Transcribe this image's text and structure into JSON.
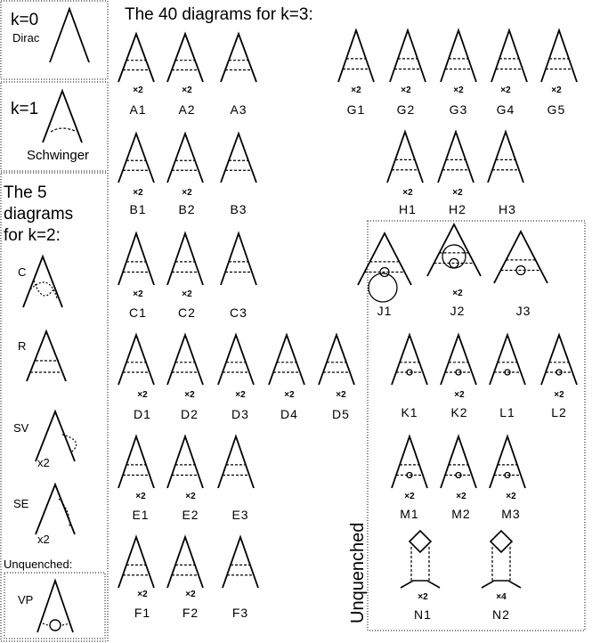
{
  "sidebar": {
    "k0": {
      "title": "k=0",
      "name": "Dirac"
    },
    "k1": {
      "title": "k=1",
      "name": "Schwinger"
    },
    "k2": {
      "heading_lines": [
        "The 5",
        "diagrams",
        "for k=2:"
      ],
      "items": [
        {
          "label": "C",
          "mult": ""
        },
        {
          "label": "R",
          "mult": ""
        },
        {
          "label": "SV",
          "mult": "x2"
        },
        {
          "label": "SE",
          "mult": "x2"
        }
      ]
    },
    "unquenched": {
      "heading": "Unquenched:",
      "label": "VP"
    }
  },
  "main": {
    "title": "The 40 diagrams for k=3:",
    "unquenched_label": "Unquenched",
    "diagrams": [
      {
        "label": "A1",
        "mult": "×2"
      },
      {
        "label": "A2",
        "mult": "×2"
      },
      {
        "label": "A3",
        "mult": ""
      },
      {
        "label": "B1",
        "mult": "×2"
      },
      {
        "label": "B2",
        "mult": "×2"
      },
      {
        "label": "B3",
        "mult": ""
      },
      {
        "label": "C1",
        "mult": "×2"
      },
      {
        "label": "C2",
        "mult": "×2"
      },
      {
        "label": "C3",
        "mult": ""
      },
      {
        "label": "D1",
        "mult": "×2"
      },
      {
        "label": "D2",
        "mult": "×2"
      },
      {
        "label": "D3",
        "mult": "×2"
      },
      {
        "label": "D4",
        "mult": "×2"
      },
      {
        "label": "D5",
        "mult": "×2"
      },
      {
        "label": "E1",
        "mult": "×2"
      },
      {
        "label": "E2",
        "mult": "×2"
      },
      {
        "label": "E3",
        "mult": ""
      },
      {
        "label": "F1",
        "mult": "×2"
      },
      {
        "label": "F2",
        "mult": "×2"
      },
      {
        "label": "F3",
        "mult": ""
      },
      {
        "label": "G1",
        "mult": "×2"
      },
      {
        "label": "G2",
        "mult": "×2"
      },
      {
        "label": "G3",
        "mult": "×2"
      },
      {
        "label": "G4",
        "mult": "×2"
      },
      {
        "label": "G5",
        "mult": "×2"
      },
      {
        "label": "H1",
        "mult": "×2"
      },
      {
        "label": "H2",
        "mult": "×2"
      },
      {
        "label": "H3",
        "mult": ""
      },
      {
        "label": "J1",
        "mult": ""
      },
      {
        "label": "J2",
        "mult": "×2"
      },
      {
        "label": "J3",
        "mult": ""
      },
      {
        "label": "K1",
        "mult": ""
      },
      {
        "label": "K2",
        "mult": "×2"
      },
      {
        "label": "L1",
        "mult": ""
      },
      {
        "label": "L2",
        "mult": "×2"
      },
      {
        "label": "M1",
        "mult": "×2"
      },
      {
        "label": "M2",
        "mult": "×2"
      },
      {
        "label": "M3",
        "mult": "×2"
      },
      {
        "label": "N1",
        "mult": "×2"
      },
      {
        "label": "N2",
        "mult": "×4"
      }
    ]
  }
}
